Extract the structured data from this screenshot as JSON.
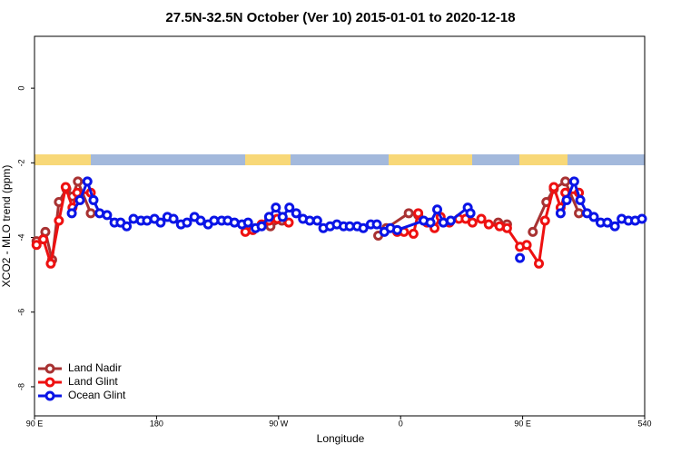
{
  "chart_data": {
    "type": "line",
    "title": "27.5N-32.5N October (Ver 10)   2015-01-01 to 2020-12-18",
    "x_label": "Longitude",
    "y_label": "XCO2 - MLO trend (ppm)",
    "xlim": [
      90,
      540
    ],
    "xticks": [
      {
        "value": 90,
        "label": "90 E"
      },
      180,
      {
        "value": 270,
        "label": "90 W"
      },
      {
        "value": 360,
        "label": "0"
      },
      {
        "value": 450,
        "label": "90 E"
      },
      540
    ],
    "ylim": [
      -8.78,
      1.39
    ],
    "yticks": [
      0,
      -2,
      -4,
      -6,
      -8
    ],
    "legend": "bottom-left",
    "series": [
      {
        "name": "Land Nadir",
        "color": "#a83232",
        "x": [
          91.5,
          98,
          103,
          108,
          113.5,
          118,
          122,
          131.5,
          200,
          264,
          272.5,
          300,
          343.5,
          349.5,
          366,
          373,
          400,
          432,
          438.5,
          445,
          457.5,
          467.5,
          473,
          481.5,
          491.5
        ],
        "values": [
          -4.1,
          -3.85,
          -4.6,
          -3.05,
          -2.7,
          -2.9,
          -2.5,
          -3.35,
          null,
          -3.7,
          -3.55,
          null,
          -3.95,
          -3.75,
          -3.35,
          -3.4,
          null,
          -3.6,
          -3.65,
          null,
          -3.85,
          -3.05,
          -2.7,
          -2.5,
          -3.35
        ]
      },
      {
        "name": "Land Glint",
        "color": "#ee1111",
        "x": [
          91.5,
          96.5,
          102,
          108,
          113,
          118,
          121.5,
          131.5,
          200,
          245.5,
          251,
          257.5,
          263,
          269,
          277.5,
          320,
          357.5,
          362.5,
          369.5,
          373,
          379.5,
          385,
          389.5,
          396,
          403,
          408,
          413,
          419.5,
          425,
          433,
          438.5,
          448,
          453,
          462,
          466.5,
          473,
          478,
          481.5,
          491.5
        ],
        "values": [
          -4.2,
          -4.05,
          -4.7,
          -3.55,
          -2.65,
          -3.2,
          -2.8,
          -2.8,
          null,
          -3.85,
          -3.8,
          -3.65,
          -3.55,
          -3.5,
          -3.6,
          null,
          -3.85,
          -3.85,
          -3.9,
          -3.35,
          -3.6,
          -3.75,
          -3.45,
          -3.6,
          -3.5,
          -3.5,
          -3.6,
          -3.5,
          -3.65,
          -3.7,
          -3.75,
          -4.25,
          -4.2,
          -4.7,
          -3.55,
          -2.65,
          -3.2,
          -2.8,
          -2.8
        ]
      },
      {
        "name": "Ocean Glint",
        "color": "#0a14e6",
        "x": [
          117.5,
          123.5,
          129,
          133.5,
          138,
          143.5,
          149,
          153.5,
          158,
          163,
          168.5,
          173,
          178.5,
          183,
          188,
          192.5,
          198,
          202.5,
          208,
          212.5,
          218,
          222.5,
          228,
          232.5,
          237.5,
          243,
          247.5,
          253,
          257.5,
          263,
          268,
          273,
          278,
          283,
          288,
          293,
          298.5,
          303,
          308,
          313,
          318,
          322.5,
          328,
          332.5,
          338,
          342.5,
          348,
          352.5,
          357.5,
          377,
          382,
          387,
          391.5,
          397,
          409.5,
          411.5,
          430,
          448,
          465,
          478,
          482.5,
          488,
          492.5,
          497.5,
          502.5,
          507.5,
          512.5,
          518,
          523,
          528,
          533,
          538
        ],
        "values": [
          -3.35,
          -3.0,
          -2.5,
          -3.0,
          -3.35,
          -3.4,
          -3.6,
          -3.6,
          -3.7,
          -3.5,
          -3.55,
          -3.55,
          -3.5,
          -3.6,
          -3.45,
          -3.5,
          -3.65,
          -3.6,
          -3.45,
          -3.55,
          -3.65,
          -3.55,
          -3.55,
          -3.55,
          -3.6,
          -3.65,
          -3.6,
          -3.75,
          -3.7,
          -3.45,
          -3.2,
          -3.45,
          -3.2,
          -3.35,
          -3.5,
          -3.55,
          -3.55,
          -3.75,
          -3.7,
          -3.65,
          -3.7,
          -3.7,
          -3.7,
          -3.75,
          -3.65,
          -3.65,
          -3.85,
          -3.75,
          -3.8,
          -3.55,
          -3.6,
          -3.25,
          -3.6,
          -3.55,
          -3.2,
          -3.35,
          null,
          -4.55,
          null,
          -3.35,
          -3.0,
          -2.5,
          -3.0,
          -3.35,
          -3.45,
          -3.6,
          -3.6,
          -3.7,
          -3.5,
          -3.55,
          -3.55,
          -3.5
        ]
      }
    ]
  }
}
